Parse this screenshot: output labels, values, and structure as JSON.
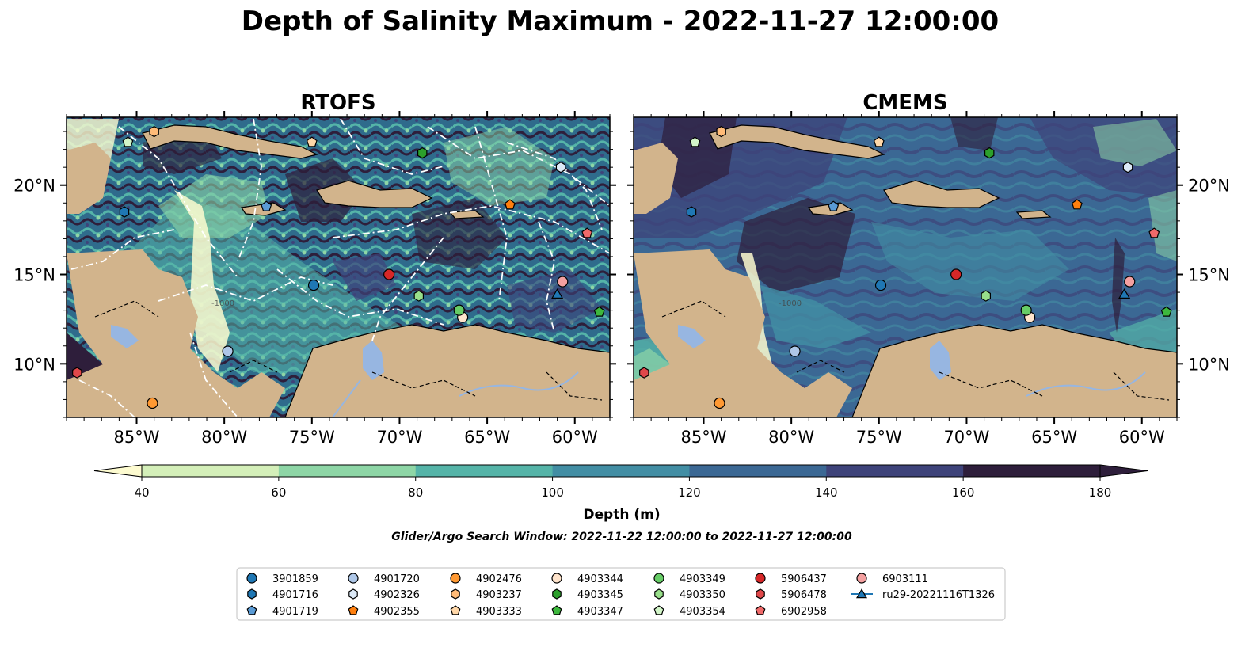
{
  "title": "Depth of Salinity Maximum - 2022-11-27 12:00:00",
  "panels": [
    {
      "id": "rtofs",
      "title": "RTOFS",
      "y_ticks_side": "left"
    },
    {
      "id": "cmems",
      "title": "CMEMS",
      "y_ticks_side": "right"
    }
  ],
  "map_extent": {
    "lon_min": -89,
    "lon_max": -58,
    "lat_min": 7,
    "lat_max": 23.8
  },
  "lon_ticks": [
    {
      "value": -85,
      "label": "85°W"
    },
    {
      "value": -80,
      "label": "80°W"
    },
    {
      "value": -75,
      "label": "75°W"
    },
    {
      "value": -70,
      "label": "70°W"
    },
    {
      "value": -65,
      "label": "65°W"
    },
    {
      "value": -60,
      "label": "60°W"
    }
  ],
  "lat_ticks": [
    {
      "value": 10,
      "label": "10°N"
    },
    {
      "value": 15,
      "label": "15°N"
    },
    {
      "value": 20,
      "label": "20°N"
    }
  ],
  "colorbar": {
    "label": "Depth (m)",
    "levels": [
      40,
      60,
      80,
      100,
      120,
      140,
      160,
      180
    ],
    "tick_labels": [
      "40",
      "60",
      "80",
      "100",
      "120",
      "140",
      "160",
      "180"
    ],
    "colors": [
      "#d4efb9",
      "#8ed6a6",
      "#55b4a8",
      "#428ea4",
      "#3b6894",
      "#3e437a",
      "#2e1e3b"
    ],
    "under_color": "#fdfbd0",
    "over_color": "#2e1e3b"
  },
  "subtitle": "Glider/Argo Search Window: 2022-11-22 12:00:00 to 2022-11-27 12:00:00",
  "colors": {
    "land": "#d2b48c",
    "river": "#97b6e1",
    "contour_rtofs": "#ffffff",
    "contour_line": "#000000"
  },
  "legend": [
    {
      "label": "3901859",
      "marker": "circle",
      "color": "#1f77b4"
    },
    {
      "label": "4901716",
      "marker": "hexagon",
      "color": "#1f77b4"
    },
    {
      "label": "4901719",
      "marker": "pentagon",
      "color": "#5a9bd5"
    },
    {
      "label": "4901720",
      "marker": "circle",
      "color": "#aec7e8"
    },
    {
      "label": "4902326",
      "marker": "hexagon",
      "color": "#dce9f7"
    },
    {
      "label": "4902355",
      "marker": "pentagon",
      "color": "#ff7f0e"
    },
    {
      "label": "4902476",
      "marker": "circle",
      "color": "#ff9933"
    },
    {
      "label": "4903237",
      "marker": "hexagon",
      "color": "#ffbb78"
    },
    {
      "label": "4903333",
      "marker": "pentagon",
      "color": "#ffd7a8"
    },
    {
      "label": "4903344",
      "marker": "circle",
      "color": "#ffe4cc"
    },
    {
      "label": "4903345",
      "marker": "hexagon",
      "color": "#2ca02c"
    },
    {
      "label": "4903347",
      "marker": "pentagon",
      "color": "#3db83d"
    },
    {
      "label": "4903349",
      "marker": "circle",
      "color": "#66cc66"
    },
    {
      "label": "4903350",
      "marker": "hexagon",
      "color": "#98df8a"
    },
    {
      "label": "4903354",
      "marker": "pentagon",
      "color": "#d2f5c8"
    },
    {
      "label": "5906437",
      "marker": "circle",
      "color": "#d62728"
    },
    {
      "label": "5906478",
      "marker": "hexagon",
      "color": "#e0484a"
    },
    {
      "label": "6902958",
      "marker": "pentagon",
      "color": "#f06a6a"
    },
    {
      "label": "6903111",
      "marker": "circle",
      "color": "#f4a0a0"
    },
    {
      "label": "ru29-20221116T1326",
      "marker": "triangle-line",
      "color": "#1f77b4"
    }
  ],
  "floats": [
    {
      "id": "3901859",
      "lon": -74.9,
      "lat": 14.4
    },
    {
      "id": "4901716",
      "lon": -85.7,
      "lat": 18.5
    },
    {
      "id": "4901719",
      "lon": -77.6,
      "lat": 18.8
    },
    {
      "id": "4901720",
      "lon": -79.8,
      "lat": 10.7
    },
    {
      "id": "4902326",
      "lon": -60.8,
      "lat": 21.0
    },
    {
      "id": "4902355",
      "lon": -63.7,
      "lat": 18.9
    },
    {
      "id": "4902476",
      "lon": -84.1,
      "lat": 7.8
    },
    {
      "id": "4903237",
      "lon": -84.0,
      "lat": 23.0
    },
    {
      "id": "4903333",
      "lon": -75.0,
      "lat": 22.4
    },
    {
      "id": "4903344",
      "lon": -66.4,
      "lat": 12.6
    },
    {
      "id": "4903345",
      "lon": -68.7,
      "lat": 21.8
    },
    {
      "id": "4903347",
      "lon": -58.6,
      "lat": 12.9
    },
    {
      "id": "4903349",
      "lon": -66.6,
      "lat": 13.0
    },
    {
      "id": "4903350",
      "lon": -68.9,
      "lat": 13.8
    },
    {
      "id": "4903354",
      "lon": -85.5,
      "lat": 22.4
    },
    {
      "id": "5906437",
      "lon": -70.6,
      "lat": 15.0
    },
    {
      "id": "5906478",
      "lon": -88.4,
      "lat": 9.5
    },
    {
      "id": "6902958",
      "lon": -59.3,
      "lat": 17.3
    },
    {
      "id": "6903111",
      "lon": -60.7,
      "lat": 14.6
    },
    {
      "id": "ru29-20221116T1326",
      "lon": -61.0,
      "lat": 13.9
    }
  ],
  "annotations": {
    "contour_label": "-1000"
  }
}
